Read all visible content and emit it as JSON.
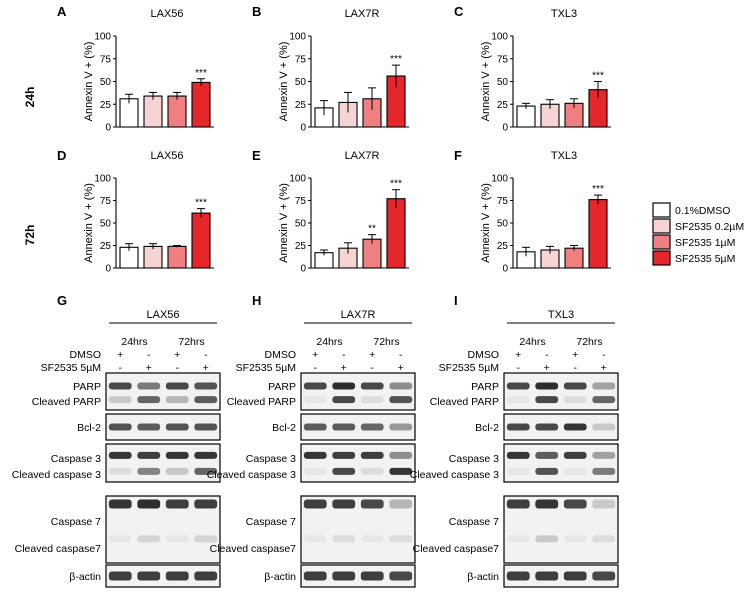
{
  "colors": {
    "dmso": "#ffffff",
    "c02": "#f6d4d4",
    "c1": "#ef7f80",
    "c5": "#e5262a",
    "axis": "#000000",
    "blot_bg": "#f2f2f2",
    "band": "#2a2a2a"
  },
  "legend": {
    "items": [
      {
        "label": "0.1%DMSO",
        "color": "#ffffff"
      },
      {
        "label": "SF2535 0.2µM",
        "color": "#f6d4d4"
      },
      {
        "label": "SF2535 1µM",
        "color": "#ef7f80"
      },
      {
        "label": "SF2535 5µM",
        "color": "#e5262a"
      }
    ]
  },
  "row_labels": [
    "24h",
    "72h"
  ],
  "chart_data": [
    {
      "type": "bar",
      "panel": "A",
      "title": "LAX56",
      "row": "24h",
      "ylabel": "Annexin V + (%)",
      "ylim": [
        0,
        100
      ],
      "yticks": [
        "0",
        "25",
        "50",
        "75",
        "100"
      ],
      "values": [
        31,
        34,
        34,
        49
      ],
      "errors": [
        5,
        4,
        4,
        4
      ],
      "sig": [
        "",
        "",
        "",
        "***"
      ]
    },
    {
      "type": "bar",
      "panel": "B",
      "title": "LAX7R",
      "row": "24h",
      "ylabel": "Annexin V + (%)",
      "ylim": [
        0,
        100
      ],
      "yticks": [
        "0",
        "25",
        "50",
        "75",
        "100"
      ],
      "values": [
        21,
        27,
        31,
        56
      ],
      "errors": [
        8,
        11,
        12,
        12
      ],
      "sig": [
        "",
        "",
        "",
        "***"
      ]
    },
    {
      "type": "bar",
      "panel": "C",
      "title": "TXL3",
      "row": "24h",
      "ylabel": "Annexin V + (%)",
      "ylim": [
        0,
        100
      ],
      "yticks": [
        "0",
        "25",
        "50",
        "75",
        "100"
      ],
      "values": [
        23,
        25,
        26,
        41
      ],
      "errors": [
        3,
        5,
        5,
        9
      ],
      "sig": [
        "",
        "",
        "",
        "***"
      ]
    },
    {
      "type": "bar",
      "panel": "D",
      "title": "LAX56",
      "row": "72h",
      "ylabel": "Annexin V + (%)",
      "ylim": [
        0,
        100
      ],
      "yticks": [
        "0",
        "25",
        "50",
        "75",
        "100"
      ],
      "values": [
        23,
        24,
        24,
        61
      ],
      "errors": [
        4,
        3,
        1,
        5
      ],
      "sig": [
        "",
        "",
        "",
        "***"
      ]
    },
    {
      "type": "bar",
      "panel": "E",
      "title": "LAX7R",
      "row": "72h",
      "ylabel": "Annexin V + (%)",
      "ylim": [
        0,
        100
      ],
      "yticks": [
        "0",
        "25",
        "50",
        "75",
        "100"
      ],
      "values": [
        17,
        22,
        32,
        77
      ],
      "errors": [
        3,
        6,
        5,
        10
      ],
      "sig": [
        "",
        "",
        "**",
        "***"
      ]
    },
    {
      "type": "bar",
      "panel": "F",
      "title": "TXL3",
      "row": "72h",
      "ylabel": "Annexin V + (%)",
      "ylim": [
        0,
        100
      ],
      "yticks": [
        "0",
        "25",
        "50",
        "75",
        "100"
      ],
      "values": [
        18,
        20,
        22,
        76
      ],
      "errors": [
        5,
        4,
        3,
        5
      ],
      "sig": [
        "",
        "",
        "",
        "***"
      ]
    }
  ],
  "blots": {
    "time_labels": [
      "24hrs",
      "72hrs"
    ],
    "treatment_labels": [
      "DMSO",
      "SF2535 5µM"
    ],
    "dmso_marks": [
      "+",
      "-",
      "+",
      "-"
    ],
    "sf_marks": [
      "-",
      "+",
      "-",
      "+"
    ],
    "panels": [
      {
        "letter": "G",
        "cell_line": "LAX56"
      },
      {
        "letter": "H",
        "cell_line": "LAX7R"
      },
      {
        "letter": "I",
        "cell_line": "TXL3"
      }
    ],
    "rows": [
      {
        "labels": [
          "PARP",
          "Cleaved PARP"
        ]
      },
      {
        "labels": [
          "Bcl-2"
        ]
      },
      {
        "labels": [
          "Caspase 3",
          "Cleaved caspase 3"
        ]
      },
      {
        "labels": [
          "Caspase 7",
          "Cleaved caspase7"
        ]
      },
      {
        "labels": [
          "β-actin"
        ]
      }
    ]
  }
}
